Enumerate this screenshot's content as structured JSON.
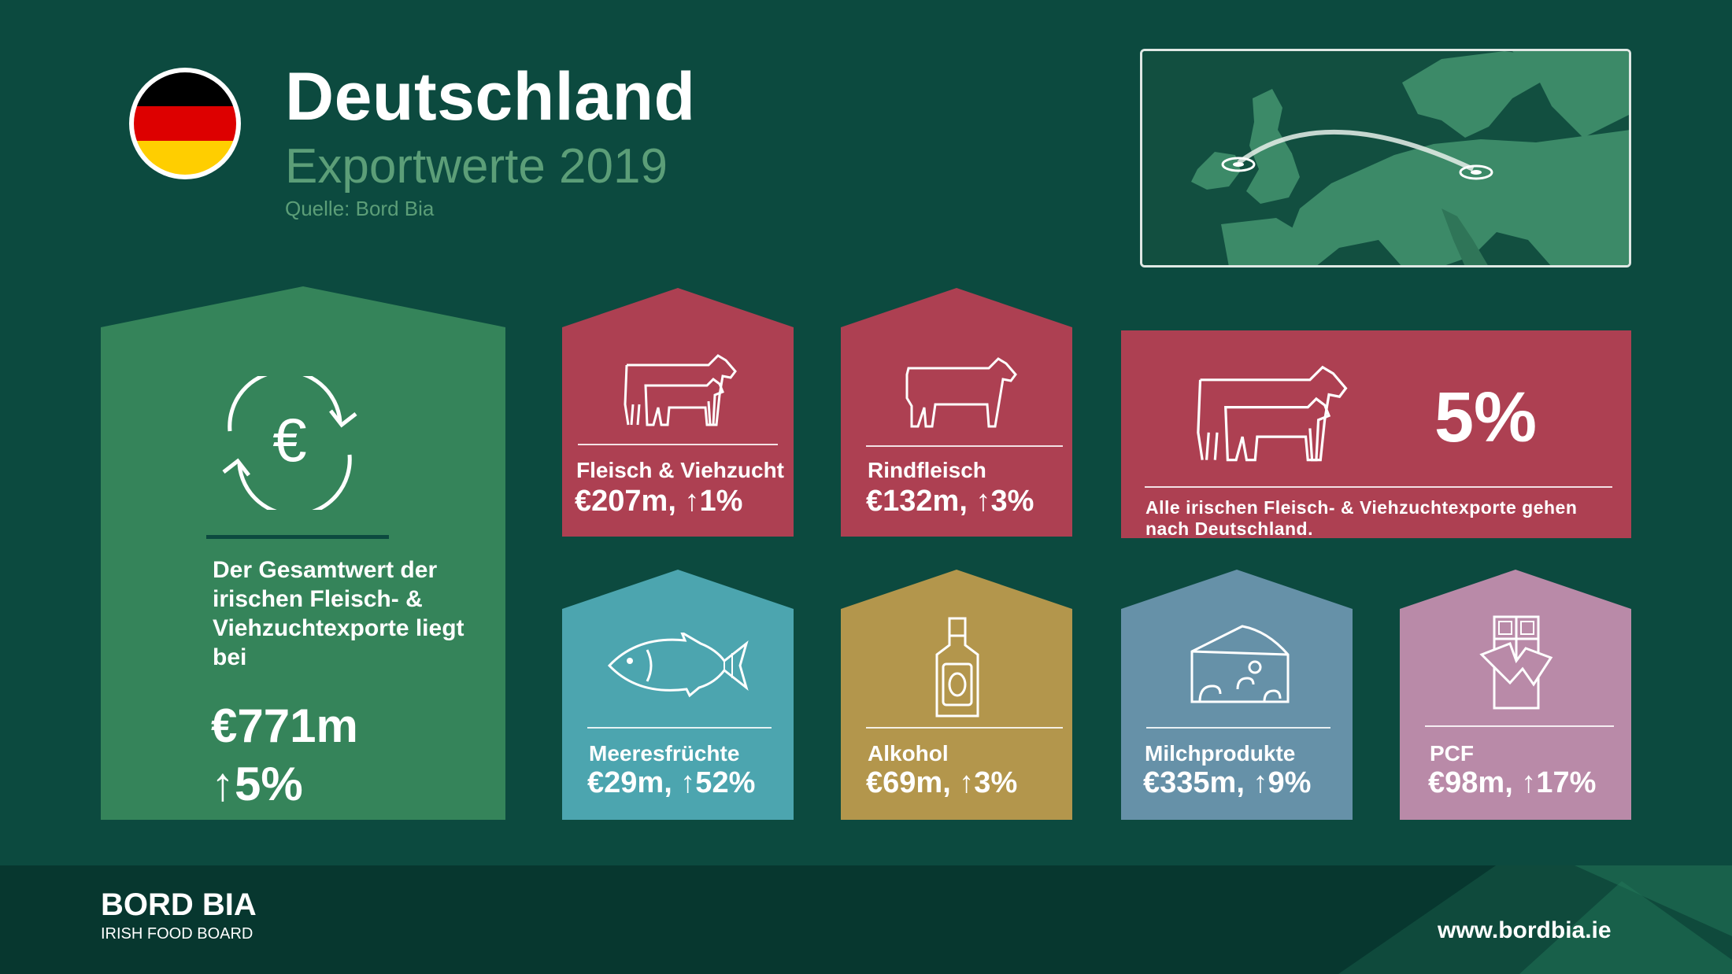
{
  "header": {
    "title": "Deutschland",
    "subtitle": "Exportwerte 2019",
    "source": "Quelle: Bord Bia"
  },
  "colors": {
    "background": "#0c4a3f",
    "total_tile": "#35845a",
    "meat_tile": "#ad4052",
    "seafood_tile": "#4ca5af",
    "alcohol_tile": "#b3964c",
    "dairy_tile": "#6691a8",
    "pcf_tile": "#b98aa8",
    "accent_text": "#5c9e78"
  },
  "total": {
    "icon": "euro-cycle-icon",
    "text": "Der Gesamtwert der irischen Fleisch- & Viehzuchtexporte liegt bei",
    "value": "€771m",
    "change": "↑5%"
  },
  "tiles": [
    {
      "icon": "cattle-icon",
      "label": "Fleisch & Viehzucht",
      "value": "€207m, ↑1%"
    },
    {
      "icon": "cow-icon",
      "label": "Rindfleisch",
      "value": "€132m, ↑3%"
    },
    {
      "icon": "fish-icon",
      "label": "Meeresfrüchte",
      "value": "€29m, ↑52%"
    },
    {
      "icon": "bottle-icon",
      "label": "Alkohol",
      "value": "€69m, ↑3%"
    },
    {
      "icon": "cheese-icon",
      "label": "Milchprodukte",
      "value": "€335m, ↑9%"
    },
    {
      "icon": "chocolate-icon",
      "label": "PCF",
      "value": "€98m, ↑17%"
    }
  ],
  "share": {
    "icon": "cattle-icon",
    "value": "5%",
    "text": "Alle irischen Fleisch- & Viehzuchtexporte gehen nach Deutschland."
  },
  "footer": {
    "logo": "BORD BIA",
    "logo_sub": "IRISH FOOD BOARD",
    "url": "www.bordbia.ie"
  }
}
